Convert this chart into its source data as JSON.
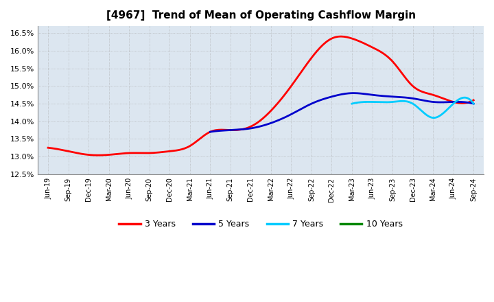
{
  "title": "[4967]  Trend of Mean of Operating Cashflow Margin",
  "ylim": [
    0.125,
    0.167
  ],
  "yticks": [
    0.125,
    0.13,
    0.135,
    0.14,
    0.145,
    0.15,
    0.155,
    0.16,
    0.165
  ],
  "plot_bg_color": "#dce6f0",
  "fig_bg_color": "#ffffff",
  "grid_color": "#aaaaaa",
  "series": {
    "3 Years": {
      "color": "#ff0000",
      "x_indices": [
        0,
        1,
        2,
        3,
        4,
        5,
        6,
        7,
        8,
        9,
        10,
        11,
        12,
        13,
        14,
        15,
        16,
        17,
        18,
        19,
        20,
        21
      ],
      "y": [
        0.1325,
        0.1315,
        0.1305,
        0.1305,
        0.131,
        0.131,
        0.1315,
        0.133,
        0.137,
        0.1375,
        0.1385,
        0.143,
        0.15,
        0.158,
        0.1635,
        0.1635,
        0.161,
        0.157,
        0.15,
        0.1475,
        0.1455,
        0.146
      ]
    },
    "5 Years": {
      "color": "#0000cc",
      "x_indices": [
        8,
        9,
        10,
        11,
        12,
        13,
        14,
        15,
        16,
        17,
        18,
        19,
        20,
        21
      ],
      "y": [
        0.137,
        0.1375,
        0.138,
        0.1395,
        0.142,
        0.145,
        0.147,
        0.148,
        0.1475,
        0.147,
        0.1465,
        0.1455,
        0.1455,
        0.145
      ]
    },
    "7 Years": {
      "color": "#00ccff",
      "x_indices": [
        15,
        16,
        17,
        18,
        19,
        20,
        21
      ],
      "y": [
        0.145,
        0.1455,
        0.1455,
        0.145,
        0.141,
        0.145,
        0.145
      ]
    },
    "10 Years": {
      "color": "#008800",
      "x_indices": [],
      "y": []
    }
  },
  "x_labels": [
    "Jun-19",
    "Sep-19",
    "Dec-19",
    "Mar-20",
    "Jun-20",
    "Sep-20",
    "Dec-20",
    "Mar-21",
    "Jun-21",
    "Sep-21",
    "Dec-21",
    "Mar-22",
    "Jun-22",
    "Sep-22",
    "Dec-22",
    "Mar-23",
    "Jun-23",
    "Sep-23",
    "Dec-23",
    "Mar-24",
    "Jun-24",
    "Sep-24"
  ],
  "legend_entries": [
    "3 Years",
    "5 Years",
    "7 Years",
    "10 Years"
  ],
  "legend_colors": [
    "#ff0000",
    "#0000cc",
    "#00ccff",
    "#008800"
  ]
}
